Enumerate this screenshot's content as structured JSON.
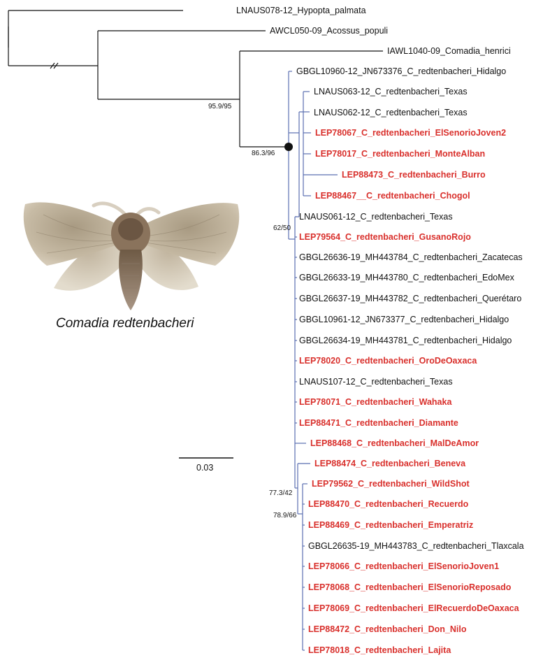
{
  "figure": {
    "species_caption": "Comadia redtenbacheri",
    "scale_bar_label": "0.03",
    "colors": {
      "highlight_taxa": "#d9302c",
      "ingroup_branches": "#5b6fb0",
      "outgroup_branches": "#111111"
    },
    "tips": [
      {
        "label": "LNAUS078-12_Hypopta_palmata",
        "highlight": false
      },
      {
        "label": "AWCL050-09_Acossus_populi",
        "highlight": false
      },
      {
        "label": "IAWL1040-09_Comadia_henrici",
        "highlight": false
      },
      {
        "label": "GBGL10960-12_JN673376_C_redtenbacheri_Hidalgo",
        "highlight": false
      },
      {
        "label": "LNAUS063-12_C_redtenbacheri_Texas",
        "highlight": false
      },
      {
        "label": "LNAUS062-12_C_redtenbacheri_Texas",
        "highlight": false
      },
      {
        "label": "LEP78067_C_redtenbacheri_ElSenorioJoven2",
        "highlight": true
      },
      {
        "label": "LEP78017_C_redtenbacheri_MonteAlban",
        "highlight": true
      },
      {
        "label": "LEP88473_C_redtenbacheri_Burro",
        "highlight": true
      },
      {
        "label": "LEP88467__C_redtenbacheri_Chogol",
        "highlight": true
      },
      {
        "label": "LNAUS061-12_C_redtenbacheri_Texas",
        "highlight": false
      },
      {
        "label": "LEP79564_C_redtenbacheri_GusanoRojo",
        "highlight": true
      },
      {
        "label": "GBGL26636-19_MH443784_C_redtenbacheri_Zacatecas",
        "highlight": false
      },
      {
        "label": "GBGL26633-19_MH443780_C_redtenbacheri_EdoMex",
        "highlight": false
      },
      {
        "label": "GBGL26637-19_MH443782_C_redtenbacheri_Querétaro",
        "highlight": false
      },
      {
        "label": "GBGL10961-12_JN673377_C_redtenbacheri_Hidalgo",
        "highlight": false
      },
      {
        "label": "GBGL26634-19_MH443781_C_redtenbacheri_Hidalgo",
        "highlight": false
      },
      {
        "label": "LEP78020_C_redtenbacheri_OroDeOaxaca",
        "highlight": true
      },
      {
        "label": "LNAUS107-12_C_redtenbacheri_Texas",
        "highlight": false
      },
      {
        "label": "LEP78071_C_redtenbacheri_Wahaka",
        "highlight": true
      },
      {
        "label": "LEP88471_C_redtenbacheri_Diamante",
        "highlight": true
      },
      {
        "label": "LEP88468_C_redtenbacheri_MalDeAmor",
        "highlight": true
      },
      {
        "label": "LEP88474_C_redtenbacheri_Beneva",
        "highlight": true
      },
      {
        "label": "LEP79562_C_redtenbacheri_WildShot",
        "highlight": true
      },
      {
        "label": "LEP88470_C_redtenbacheri_Recuerdo",
        "highlight": true
      },
      {
        "label": "LEP88469_C_redtenbacheri_Emperatriz",
        "highlight": true
      },
      {
        "label": "GBGL26635-19_MH443783_C_redtenbacheri_Tlaxcala",
        "highlight": false
      },
      {
        "label": "LEP78066_C_redtenbacheri_ElSenorioJoven1",
        "highlight": true
      },
      {
        "label": "LEP78068_C_redtenbacheri_ElSenorioReposado",
        "highlight": true
      },
      {
        "label": "LEP78069_C_redtenbacheri_ElRecuerdoDeOaxaca",
        "highlight": true
      },
      {
        "label": "LEP88472_C_redtenbacheri_Don_Nilo",
        "highlight": true
      },
      {
        "label": "LEP78018_C_redtenbacheri_Lajita",
        "highlight": true
      }
    ],
    "support_values": [
      "95.9/95",
      "86.3/96",
      "62/50",
      "77.3/42",
      "78.9/66"
    ]
  }
}
